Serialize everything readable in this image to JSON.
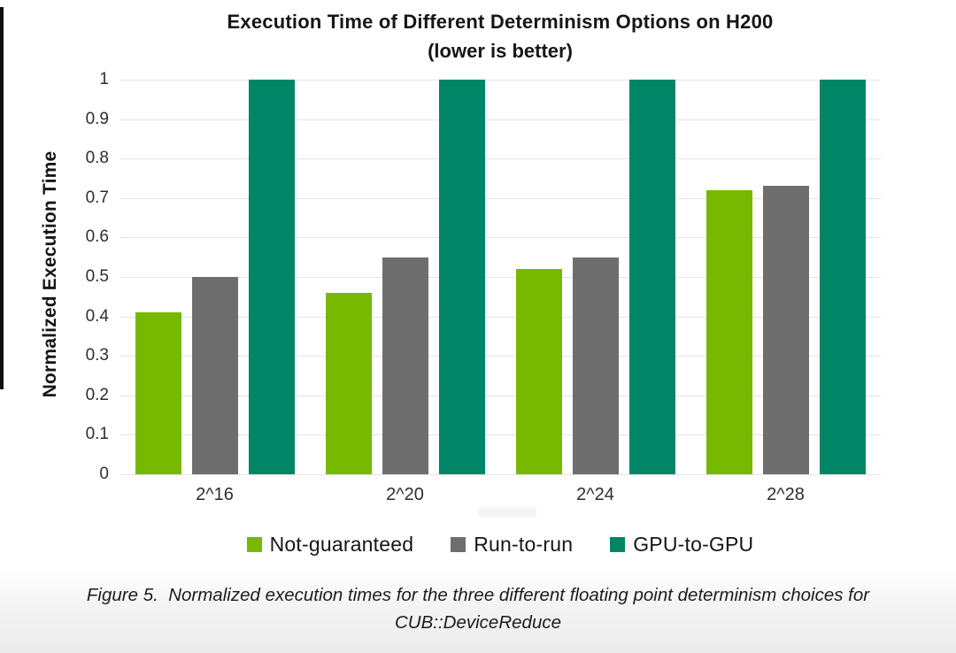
{
  "title": {
    "line1": "Execution Time of Different Determinism Options on H200",
    "line2": "(lower is better)"
  },
  "y_axis": {
    "label": "Normalized Execution Time",
    "ticks": [
      "1",
      "0.9",
      "0.8",
      "0.7",
      "0.6",
      "0.5",
      "0.4",
      "0.3",
      "0.2",
      "0.1",
      "0"
    ]
  },
  "x_axis": {
    "categories": [
      "2^16",
      "2^20",
      "2^24",
      "2^28"
    ]
  },
  "chart_data": {
    "type": "bar",
    "title": "Execution Time of Different Determinism Options on H200 (lower is better)",
    "xlabel": "",
    "ylabel": "Normalized Execution Time",
    "ylim": [
      0,
      1
    ],
    "grid": true,
    "legend_position": "bottom",
    "categories": [
      "2^16",
      "2^20",
      "2^24",
      "2^28"
    ],
    "series": [
      {
        "name": "Not-guaranteed",
        "color": "#76b900",
        "values": [
          0.41,
          0.46,
          0.52,
          0.72
        ]
      },
      {
        "name": "Run-to-run",
        "color": "#6e6e6e",
        "values": [
          0.5,
          0.55,
          0.55,
          0.73
        ]
      },
      {
        "name": "GPU-to-GPU",
        "color": "#008567",
        "values": [
          1.0,
          1.0,
          1.0,
          1.0
        ]
      }
    ]
  },
  "caption": {
    "label": "Figure 5.",
    "text": "Normalized execution times for the three different floating point determinism choices for CUB::DeviceReduce"
  },
  "colors": {
    "not_guaranteed": "#76b900",
    "run_to_run": "#6e6e6e",
    "gpu_to_gpu": "#008567",
    "gridline": "#e3e3e3",
    "text": "#161616"
  }
}
